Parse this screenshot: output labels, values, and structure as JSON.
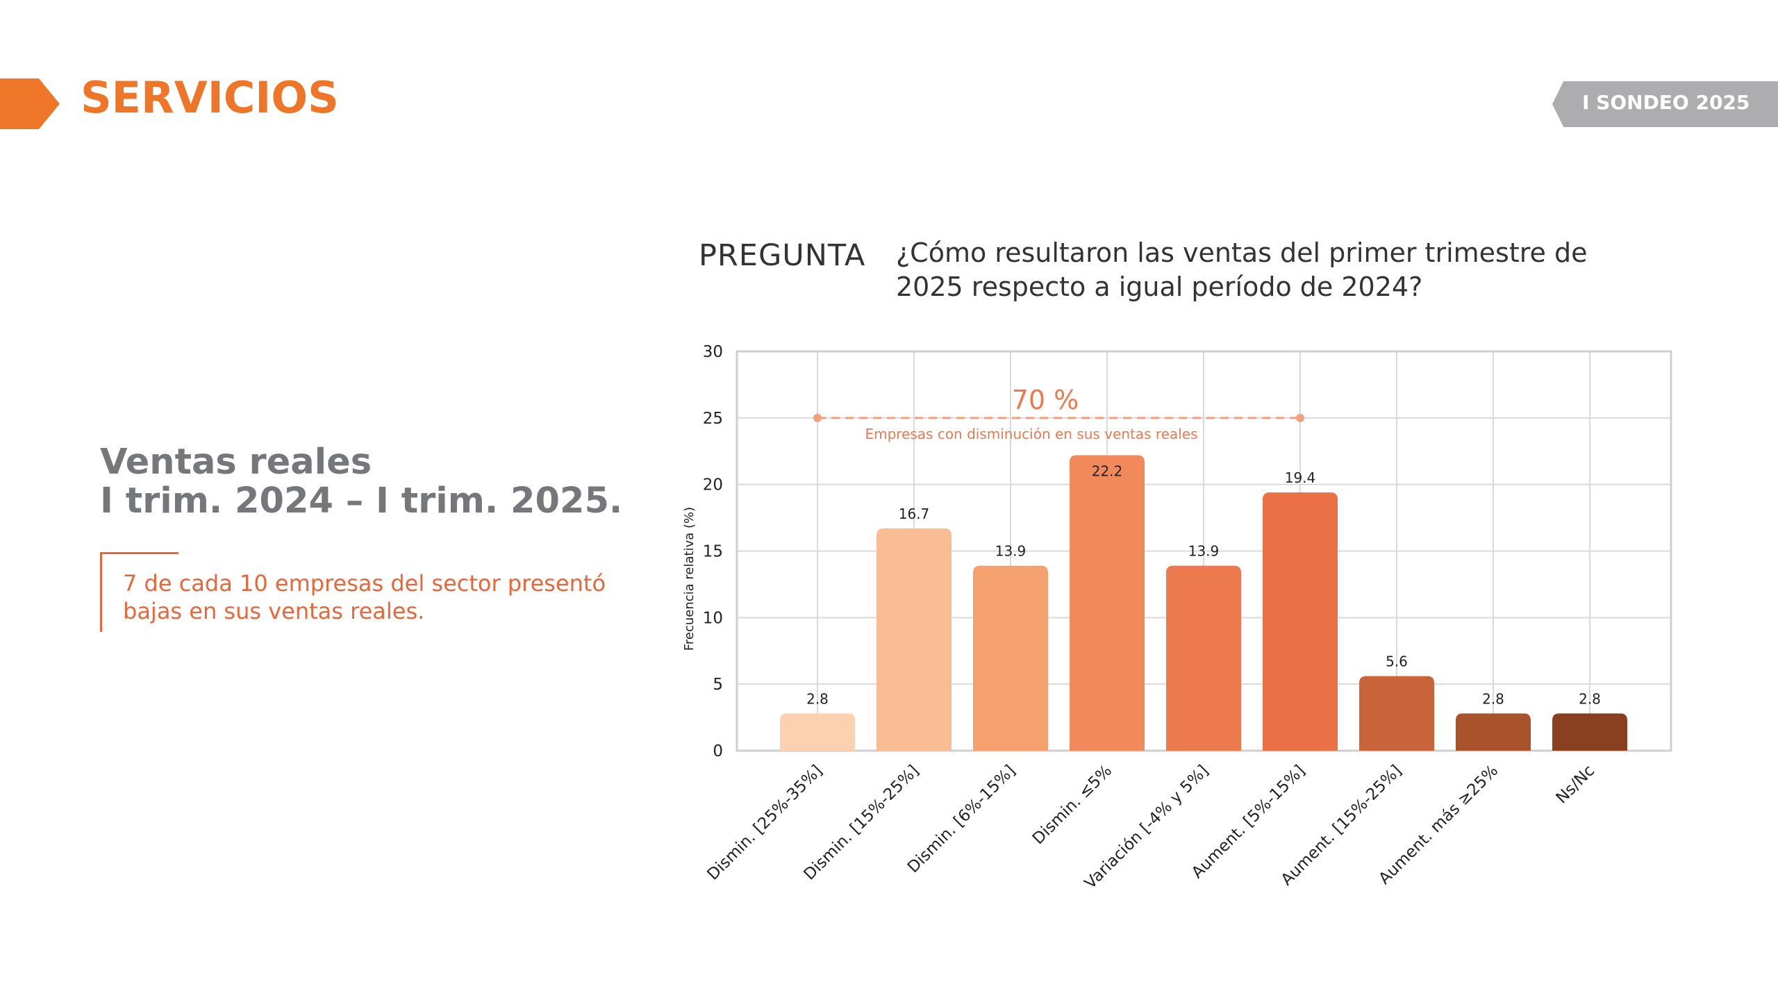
{
  "header": {
    "section_title": "SERVICIOS",
    "badge": "I SONDEO 2025",
    "accent_color": "#ee7628",
    "badge_color": "#adadaf"
  },
  "left_panel": {
    "title_line1": "Ventas reales",
    "title_line2": "I trim. 2024 – I trim. 2025.",
    "callout": "7 de cada 10 empresas del sector presentó bajas en sus ventas reales."
  },
  "question": {
    "label": "PREGUNTA",
    "text": "¿Cómo resultaron las ventas del primer trimestre de 2025 respecto a igual período de 2024?"
  },
  "chart_data": {
    "type": "bar",
    "title": "",
    "xlabel": "",
    "ylabel": "Frecuencia relativa (%)",
    "ylim": [
      0,
      30
    ],
    "yticks": [
      0,
      5,
      10,
      15,
      20,
      25,
      30
    ],
    "grid": true,
    "categories": [
      "Dismin. [25%-35%]",
      "Dismin. [15%-25%]",
      "Dismin. [6%-15%]",
      "Dismin. ≤5%",
      "Variación [-4% y 5%]",
      "Aument. [5%-15%]",
      "Aument. [15%-25%]",
      "Aument. más ≥25%",
      "Ns/Nc"
    ],
    "values": [
      2.8,
      16.7,
      13.9,
      22.2,
      13.9,
      19.4,
      5.6,
      2.8,
      2.8
    ],
    "value_labels": [
      "2.8",
      "16.7",
      "13.9",
      "22.2",
      "13.9",
      "19.4",
      "5.6",
      "2.8",
      "2.8"
    ],
    "colors": [
      "#fcd1b0",
      "#f8bd94",
      "#f5a16f",
      "#f1895a",
      "#ec7a4e",
      "#ea7146",
      "#c9633a",
      "#a9532d",
      "#8a3f20"
    ],
    "annotation": {
      "value_text": "70 %",
      "label": "Empresas con disminución en sus ventas reales",
      "y_value": 25,
      "from_category_index": 0,
      "to_category_index": 5,
      "color": "#ec7a4f"
    }
  }
}
